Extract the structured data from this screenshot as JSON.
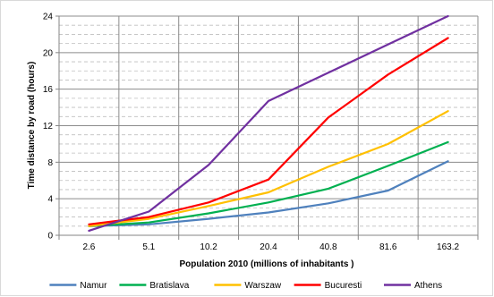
{
  "chart_data": {
    "type": "line",
    "title": "",
    "xlabel": "Population 2010 (millions of inhabitants )",
    "ylabel": "Time distance by road (hours)",
    "categories": [
      "2.6",
      "5.1",
      "10.2",
      "20.4",
      "40.8",
      "81.6",
      "163.2"
    ],
    "ylim": [
      0,
      24
    ],
    "yticks": [
      0,
      4,
      8,
      12,
      16,
      20,
      24
    ],
    "ytick_labels": [
      "0",
      "4",
      "8",
      "12",
      "16",
      "20",
      "24"
    ],
    "grid": true,
    "legend_position": "bottom",
    "series": [
      {
        "name": "Namur",
        "color": "#4f81bd",
        "values": [
          1.0,
          1.2,
          1.8,
          2.5,
          3.5,
          4.9,
          8.1
        ]
      },
      {
        "name": "Bratislava",
        "color": "#00b050",
        "values": [
          1.0,
          1.4,
          2.4,
          3.6,
          5.1,
          7.6,
          10.2
        ]
      },
      {
        "name": "Warszaw",
        "color": "#ffc000",
        "values": [
          1.0,
          1.8,
          3.2,
          4.7,
          7.5,
          10.0,
          13.6
        ]
      },
      {
        "name": "Bucuresti",
        "color": "#ff0000",
        "values": [
          1.2,
          2.0,
          3.6,
          6.1,
          12.9,
          17.6,
          21.6
        ]
      },
      {
        "name": "Athens",
        "color": "#7030a0",
        "values": [
          0.5,
          2.6,
          7.7,
          14.7,
          17.8,
          20.9,
          24.0
        ]
      }
    ]
  }
}
